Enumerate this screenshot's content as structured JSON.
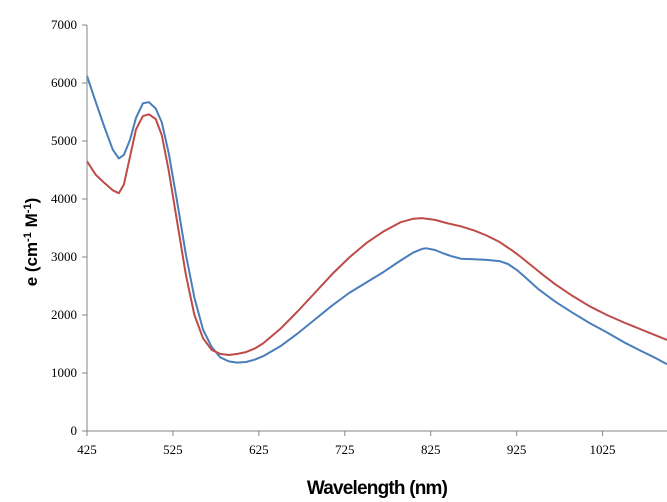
{
  "chart_data": {
    "type": "line",
    "title": "",
    "xlabel": "Wavelength (nm)",
    "ylabel": {
      "prefix": "e (cm",
      "sup1": "-1",
      "middle": " M",
      "sup2": "-1",
      "suffix": ")"
    },
    "xlim": [
      425,
      1100
    ],
    "ylim": [
      0,
      7000
    ],
    "x_ticks": [
      425,
      525,
      625,
      725,
      825,
      925,
      1025
    ],
    "y_ticks": [
      0,
      1000,
      2000,
      3000,
      4000,
      5000,
      6000,
      7000
    ],
    "grid": false,
    "legend": "none",
    "series": [
      {
        "color": "#4A7EBB",
        "x": [
          425,
          435,
          445,
          455,
          462,
          468,
          475,
          482,
          490,
          497,
          505,
          512,
          520,
          530,
          540,
          550,
          560,
          570,
          580,
          590,
          600,
          610,
          620,
          630,
          650,
          670,
          690,
          710,
          730,
          750,
          770,
          790,
          805,
          815,
          820,
          830,
          840,
          850,
          860,
          875,
          890,
          905,
          915,
          925,
          935,
          950,
          970,
          990,
          1010,
          1030,
          1050,
          1070,
          1085,
          1100
        ],
        "y": [
          6120,
          5680,
          5250,
          4850,
          4700,
          4760,
          5020,
          5400,
          5650,
          5670,
          5560,
          5320,
          4800,
          3950,
          3050,
          2300,
          1750,
          1450,
          1270,
          1200,
          1180,
          1190,
          1230,
          1290,
          1460,
          1680,
          1920,
          2160,
          2380,
          2560,
          2740,
          2940,
          3080,
          3140,
          3150,
          3120,
          3060,
          3010,
          2970,
          2960,
          2950,
          2930,
          2880,
          2780,
          2650,
          2450,
          2230,
          2040,
          1860,
          1700,
          1530,
          1380,
          1270,
          1150
        ]
      },
      {
        "color": "#BE4B48",
        "x": [
          425,
          435,
          445,
          455,
          462,
          468,
          475,
          482,
          490,
          497,
          505,
          512,
          520,
          530,
          540,
          550,
          560,
          570,
          580,
          590,
          600,
          610,
          620,
          630,
          650,
          670,
          690,
          710,
          730,
          750,
          770,
          790,
          805,
          815,
          820,
          830,
          845,
          860,
          875,
          890,
          905,
          920,
          930,
          940,
          955,
          970,
          990,
          1010,
          1030,
          1050,
          1070,
          1085,
          1100
        ],
        "y": [
          4650,
          4420,
          4280,
          4150,
          4100,
          4250,
          4730,
          5200,
          5430,
          5460,
          5380,
          5100,
          4500,
          3600,
          2700,
          2000,
          1600,
          1400,
          1330,
          1310,
          1330,
          1360,
          1420,
          1510,
          1760,
          2060,
          2380,
          2700,
          2990,
          3240,
          3440,
          3600,
          3660,
          3670,
          3660,
          3640,
          3580,
          3530,
          3460,
          3370,
          3260,
          3110,
          3000,
          2880,
          2700,
          2530,
          2330,
          2150,
          2000,
          1870,
          1750,
          1660,
          1570
        ]
      }
    ]
  }
}
